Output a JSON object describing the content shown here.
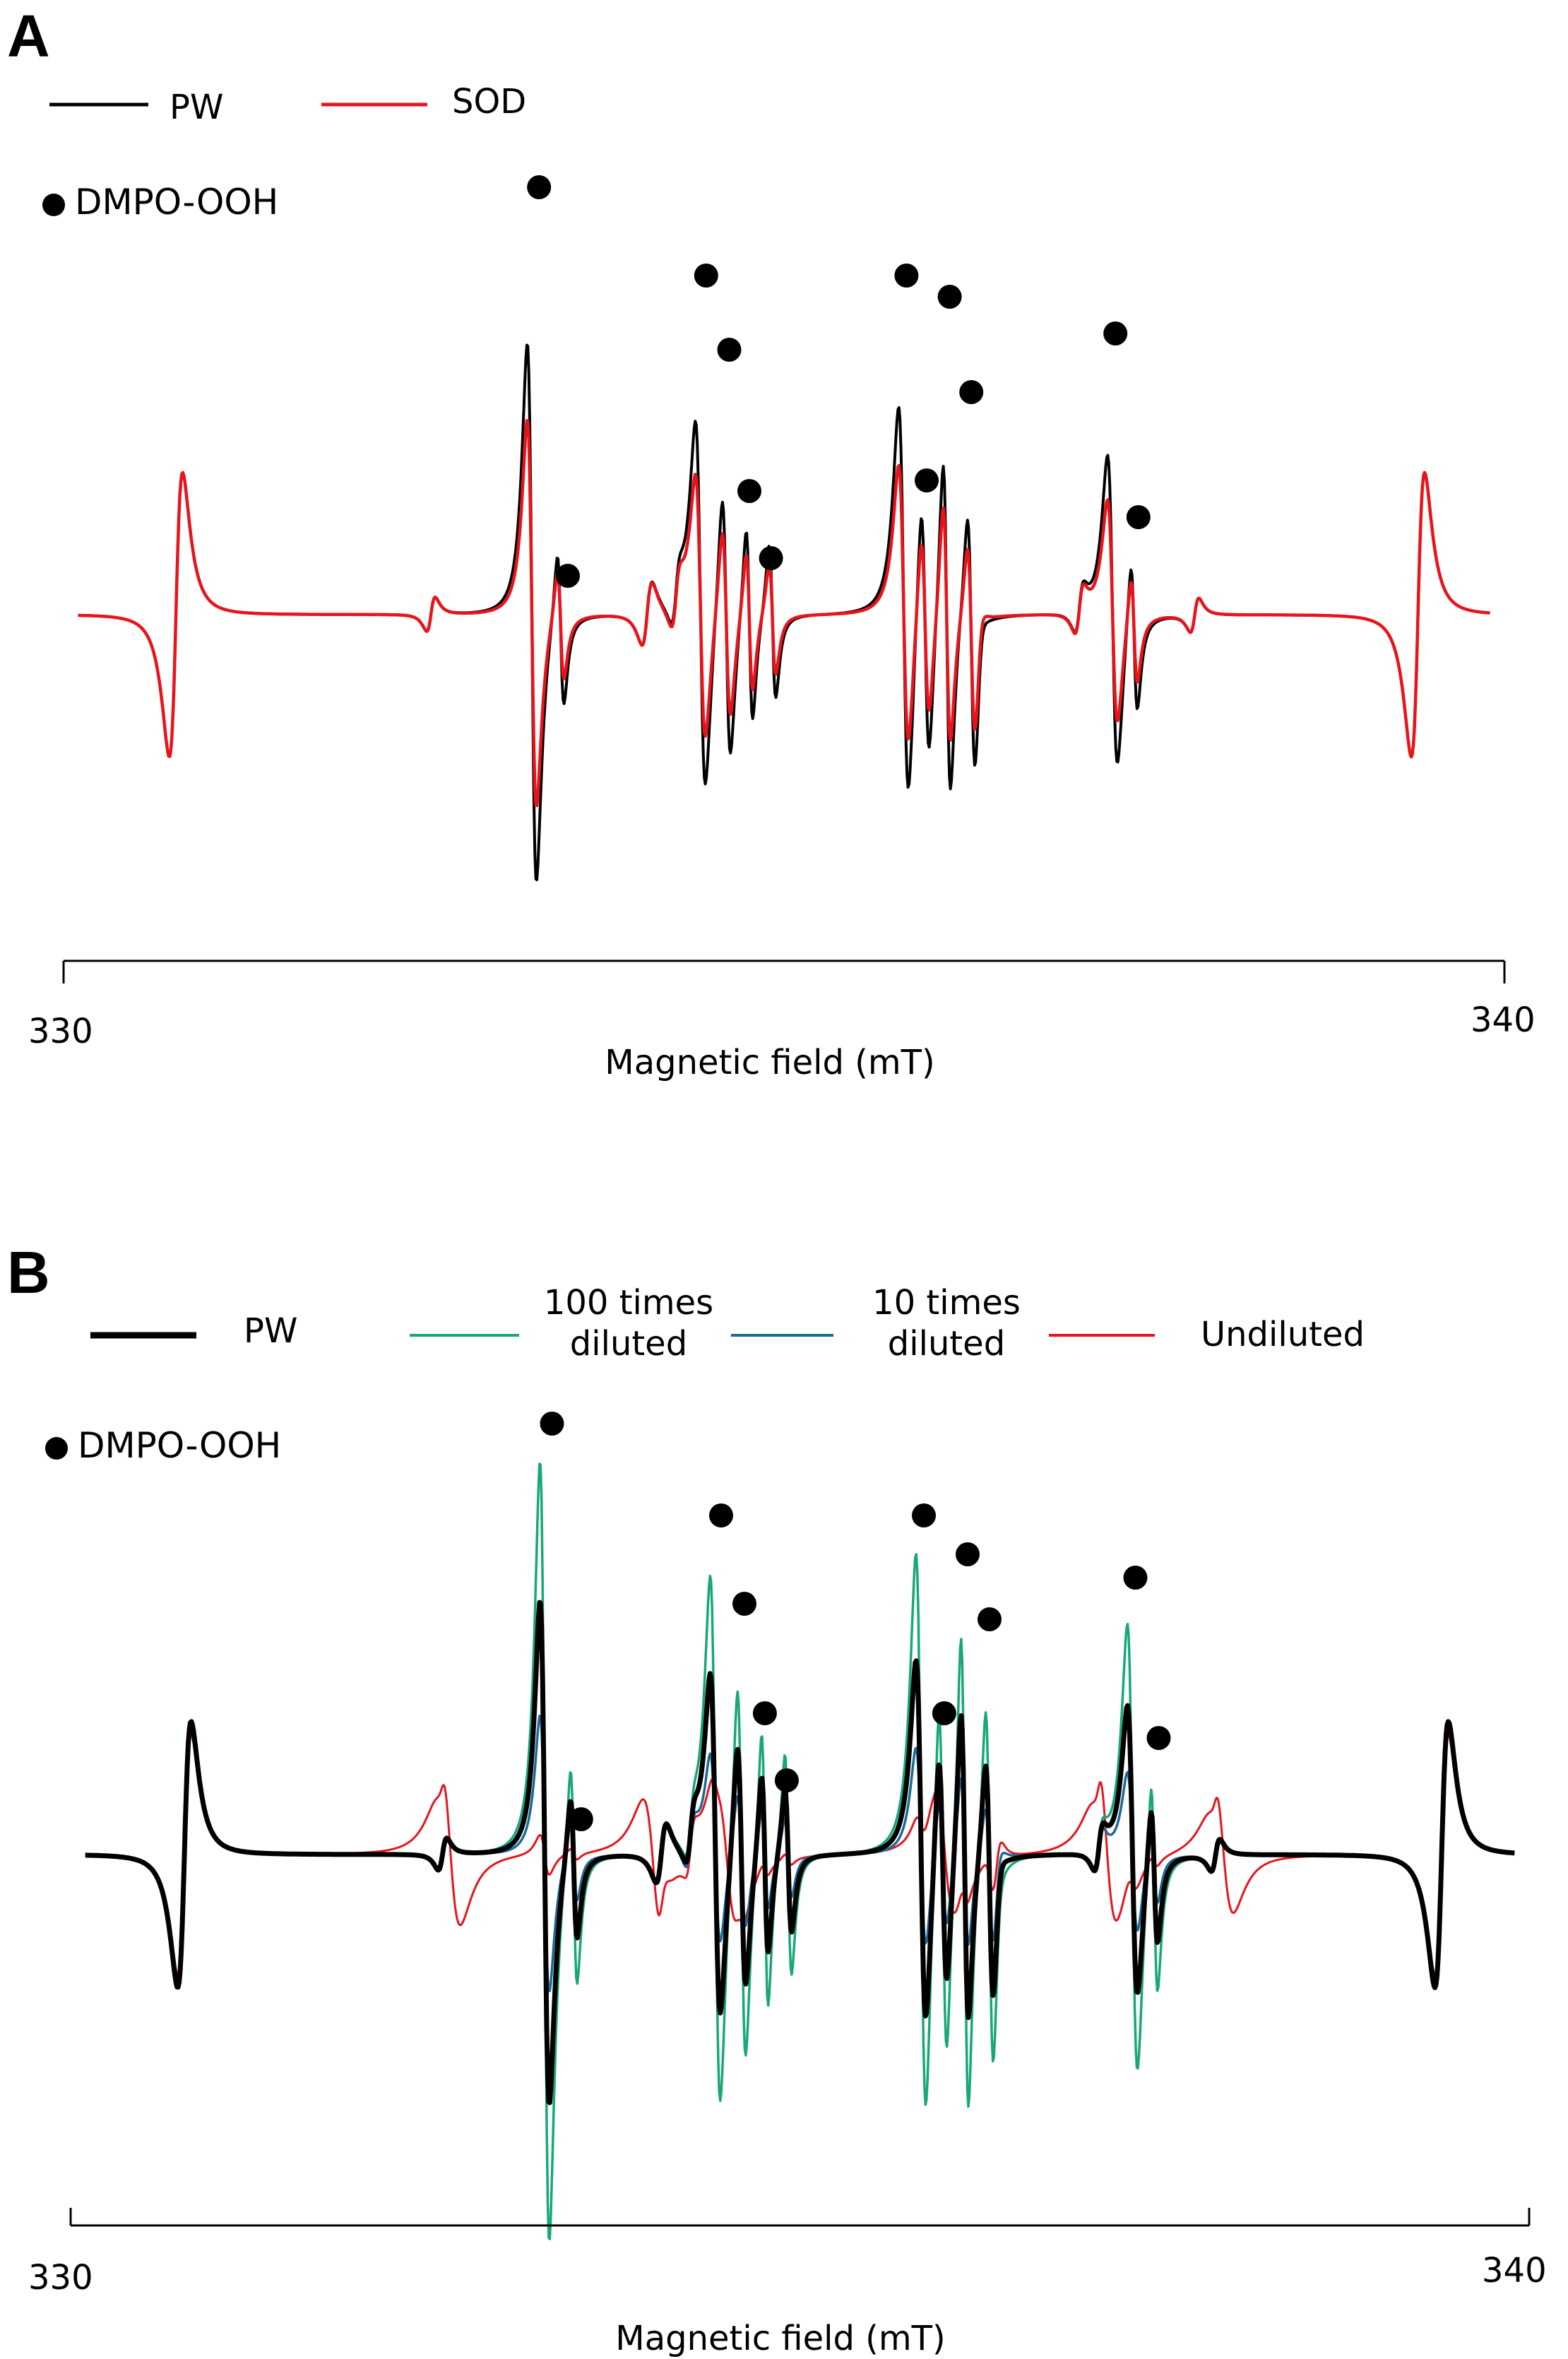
{
  "chart_data": [
    {
      "panel": "A",
      "type": "line",
      "xlabel": "Magnetic field (mT)",
      "xlim": [
        330,
        340
      ],
      "x_tick_labels": [
        "330",
        "340"
      ],
      "marker_legend": {
        "label": "DMPO-OOH",
        "marker": "filled-circle"
      },
      "series": [
        {
          "name": "PW",
          "color": "#000000",
          "label": "PW"
        },
        {
          "name": "SOD",
          "color": "#e8141c",
          "label": "SOD"
        }
      ],
      "peaks": [
        {
          "x": 330.78,
          "h": -1.0,
          "w": 0.08
        },
        {
          "x": 339.4,
          "h": -1.0,
          "w": 0.08
        },
        {
          "x": 332.55,
          "h": -0.12,
          "w": 0.05
        },
        {
          "x": 334.05,
          "h": -0.22,
          "w": 0.06
        },
        {
          "x": 334.25,
          "h": -0.18,
          "w": 0.05
        },
        {
          "x": 336.35,
          "h": -0.16,
          "w": 0.05
        },
        {
          "x": 337.05,
          "h": -0.16,
          "w": 0.05
        },
        {
          "x": 337.85,
          "h": -0.12,
          "w": 0.05
        },
        {
          "x": 333.25,
          "h": 1.9,
          "w": 0.055
        },
        {
          "x": 333.45,
          "h": 0.55,
          "w": 0.04
        },
        {
          "x": 334.42,
          "h": 1.3,
          "w": 0.06
        },
        {
          "x": 334.6,
          "h": 0.95,
          "w": 0.05
        },
        {
          "x": 334.76,
          "h": 0.7,
          "w": 0.04
        },
        {
          "x": 334.92,
          "h": 0.55,
          "w": 0.04
        },
        {
          "x": 335.83,
          "h": 1.4,
          "w": 0.06
        },
        {
          "x": 335.98,
          "h": 0.95,
          "w": 0.05
        },
        {
          "x": 336.13,
          "h": 1.2,
          "w": 0.045
        },
        {
          "x": 336.3,
          "h": 0.85,
          "w": 0.045
        },
        {
          "x": 337.28,
          "h": 1.1,
          "w": 0.06
        },
        {
          "x": 337.43,
          "h": 0.55,
          "w": 0.04
        }
      ],
      "series_scale": {
        "PW": [
          1.0,
          1.0
        ],
        "SOD": [
          0.72,
          1.0
        ]
      },
      "dots_x": [
        333.3,
        334.46,
        334.62,
        334.76,
        334.91,
        333.5,
        335.85,
        336.15,
        335.99,
        336.3,
        337.3,
        337.46
      ]
    },
    {
      "panel": "B",
      "type": "line",
      "xlabel": "Magnetic field (mT)",
      "xlim": [
        330,
        340
      ],
      "x_tick_labels": [
        "330",
        "340"
      ],
      "marker_legend": {
        "label": "DMPO-OOH",
        "marker": "filled-circle"
      },
      "series": [
        {
          "name": "PW",
          "color": "#000000",
          "label": "PW"
        },
        {
          "name": "100 times diluted",
          "color": "#17a77a",
          "label": "100 times\ndiluted"
        },
        {
          "name": "10 times diluted",
          "color": "#1b6a98",
          "label": "10 times\ndiluted"
        },
        {
          "name": "Undiluted",
          "color": "#e8141c",
          "label": "Undiluted"
        }
      ],
      "series_scale": {
        "PW": [
          1.0,
          1.0
        ],
        "100 times diluted": [
          1.55,
          1.0
        ],
        "10 times diluted": [
          0.55,
          0.95
        ],
        "Undiluted": [
          0.08,
          0.9
        ]
      },
      "undiluted_broad_x": [
        332.6,
        334.0,
        334.5,
        336.0,
        337.1,
        337.9
      ],
      "dots_x": [
        333.3,
        334.46,
        334.62,
        334.76,
        334.91,
        333.5,
        335.85,
        336.15,
        335.99,
        336.3,
        337.3,
        337.46
      ]
    }
  ]
}
